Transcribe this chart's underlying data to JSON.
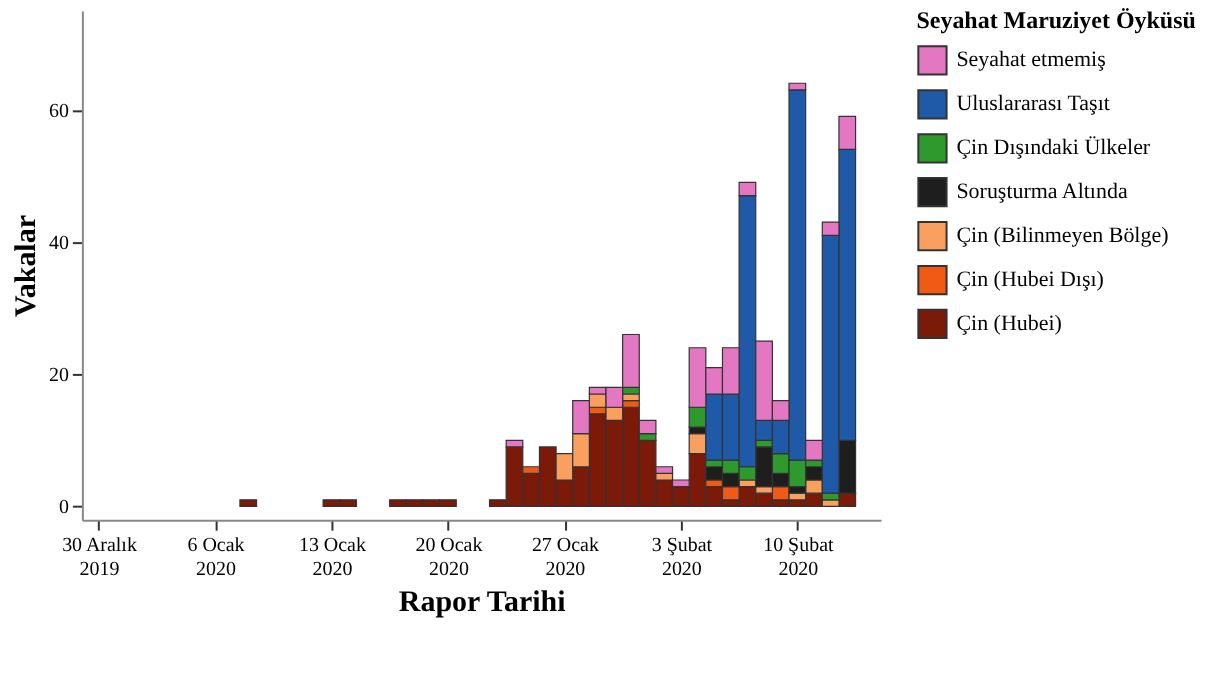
{
  "chart_data": {
    "type": "bar",
    "stacked": true,
    "xlabel": "Rapor Tarihi",
    "ylabel": "Vakalar",
    "legend_title": "Seyahat Maruziyet Öyküsü",
    "legend": "right",
    "grid": false,
    "x": [
      "2020-01-08",
      "2020-01-13",
      "2020-01-14",
      "2020-01-17",
      "2020-01-18",
      "2020-01-19",
      "2020-01-20",
      "2020-01-23",
      "2020-01-24",
      "2020-01-25",
      "2020-01-26",
      "2020-01-27",
      "2020-01-28",
      "2020-01-29",
      "2020-01-30",
      "2020-01-31",
      "2020-02-01",
      "2020-02-02",
      "2020-02-03",
      "2020-02-04",
      "2020-02-05",
      "2020-02-06",
      "2020-02-07",
      "2020-02-08",
      "2020-02-09",
      "2020-02-10",
      "2020-02-11",
      "2020-02-12",
      "2020-02-13"
    ],
    "xlim": [
      "2019-12-29",
      "2020-02-15"
    ],
    "xticks": [
      {
        "value": "2019-12-30",
        "label": "30 Aralık\n2019"
      },
      {
        "value": "2020-01-06",
        "label": "6 Ocak\n2020"
      },
      {
        "value": "2020-01-13",
        "label": "13 Ocak\n2020"
      },
      {
        "value": "2020-01-20",
        "label": "20 Ocak\n2020"
      },
      {
        "value": "2020-01-27",
        "label": "27 Ocak\n2020"
      },
      {
        "value": "2020-02-03",
        "label": "3 Şubat\n2020"
      },
      {
        "value": "2020-02-10",
        "label": "10 Şubat\n2020"
      }
    ],
    "ylim": [
      -2,
      75
    ],
    "yticks": [
      0,
      20,
      40,
      60
    ],
    "series": [
      {
        "name": "Çin (Hubei)",
        "color": "#7b1a08",
        "values": [
          1,
          1,
          1,
          1,
          1,
          1,
          1,
          1,
          9,
          5,
          9,
          4,
          6,
          14,
          13,
          15,
          10,
          4,
          3,
          8,
          3,
          1,
          3,
          2,
          1,
          1,
          2,
          null,
          2
        ]
      },
      {
        "name": "Çin (Hubei Dışı)",
        "color": "#f05a14",
        "values": [
          null,
          null,
          null,
          null,
          null,
          null,
          null,
          null,
          null,
          1,
          null,
          null,
          null,
          1,
          null,
          1,
          null,
          null,
          null,
          null,
          1,
          2,
          null,
          null,
          2,
          null,
          null,
          null,
          null
        ]
      },
      {
        "name": "Çin (Bilinmeyen Bölge)",
        "color": "#f9a060",
        "values": [
          null,
          null,
          null,
          null,
          null,
          null,
          null,
          null,
          null,
          null,
          null,
          4,
          5,
          2,
          2,
          1,
          null,
          1,
          null,
          3,
          null,
          null,
          1,
          1,
          null,
          1,
          2,
          1,
          null
        ]
      },
      {
        "name": "Soruşturma Altında",
        "color": "#1e1e1e",
        "values": [
          null,
          null,
          null,
          null,
          null,
          null,
          null,
          null,
          null,
          null,
          null,
          null,
          null,
          null,
          null,
          null,
          null,
          null,
          null,
          1,
          2,
          2,
          null,
          6,
          2,
          1,
          2,
          null,
          8
        ]
      },
      {
        "name": "Çin Dışındaki Ülkeler",
        "color": "#2e9a2e",
        "values": [
          null,
          null,
          null,
          null,
          null,
          null,
          null,
          null,
          null,
          null,
          null,
          null,
          null,
          null,
          null,
          1,
          1,
          null,
          null,
          3,
          1,
          2,
          2,
          1,
          3,
          4,
          1,
          1,
          null
        ]
      },
      {
        "name": "Uluslararası Taşıt",
        "color": "#1f5aa8",
        "values": [
          null,
          null,
          null,
          null,
          null,
          null,
          null,
          null,
          null,
          null,
          null,
          null,
          null,
          null,
          null,
          null,
          null,
          null,
          null,
          null,
          10,
          10,
          41,
          3,
          5,
          56,
          null,
          39,
          44
        ]
      },
      {
        "name": "Seyahat etmemiş",
        "color": "#e377c2",
        "values": [
          null,
          null,
          null,
          null,
          null,
          null,
          null,
          null,
          1,
          null,
          null,
          null,
          5,
          1,
          3,
          8,
          2,
          1,
          1,
          9,
          4,
          7,
          2,
          12,
          3,
          1,
          3,
          2,
          5
        ]
      }
    ]
  }
}
